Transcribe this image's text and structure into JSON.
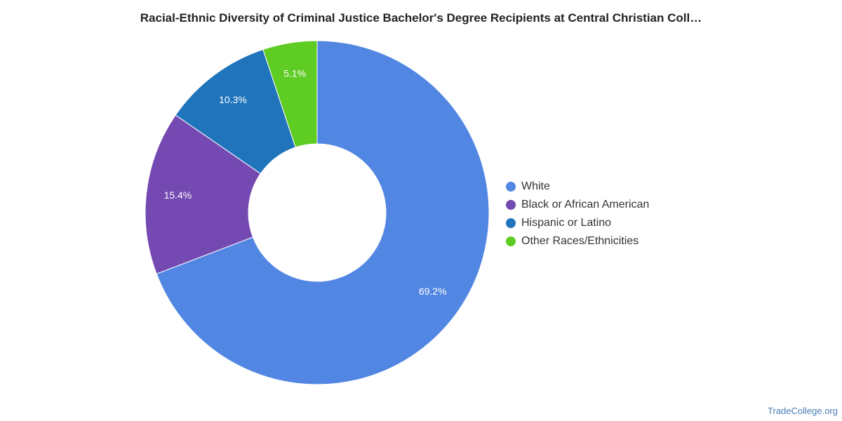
{
  "chart_data": {
    "type": "pie",
    "title": "Racial-Ethnic Diversity of Criminal Justice Bachelor's Degree Recipients at Central Christian Coll…",
    "donut": true,
    "legend_position": "right",
    "categories": [
      "White",
      "Black or African American",
      "Hispanic or Latino",
      "Other Races/Ethnicities"
    ],
    "values": [
      69.2,
      15.4,
      10.3,
      5.1
    ],
    "labels": [
      "69.2%",
      "15.4%",
      "10.3%",
      "5.1%"
    ],
    "colors": [
      "#5286e3",
      "#7549b2",
      "#1f74bc",
      "#5fcc23"
    ]
  },
  "watermark": "TradeCollege.org"
}
